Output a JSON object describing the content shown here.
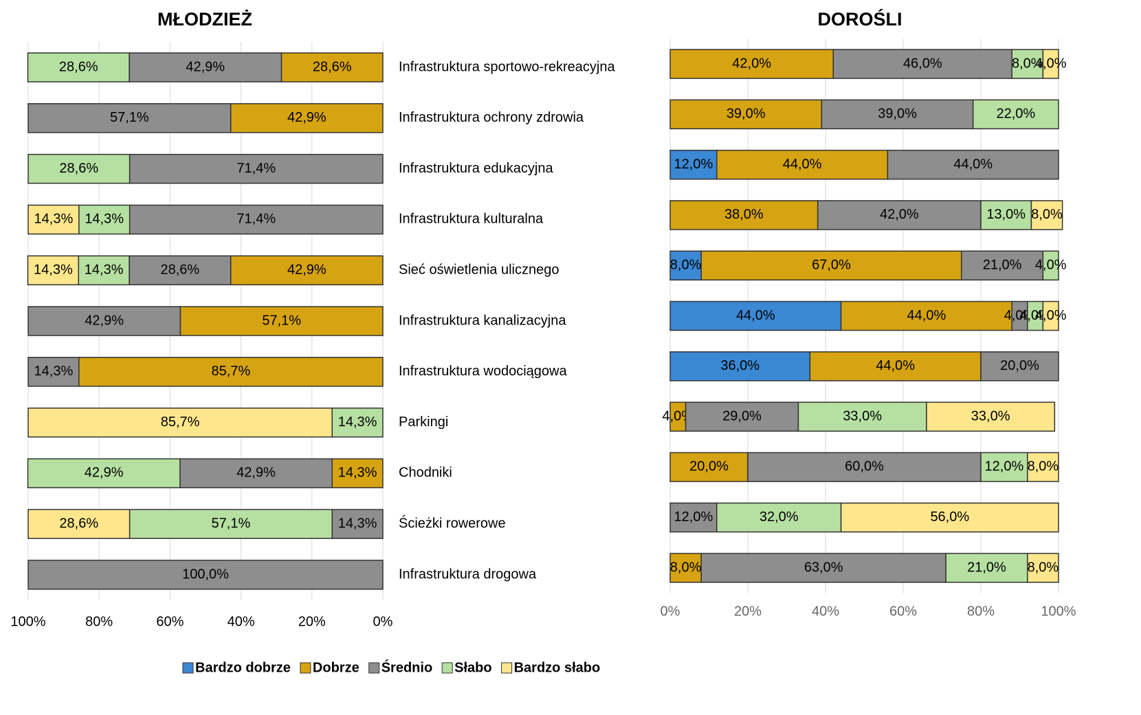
{
  "chart_data": [
    {
      "type": "bar",
      "orientation": "horizontal",
      "stacked": true,
      "x_inverted": true,
      "title": "MŁODZIEŻ",
      "categories": [
        "Infrastruktura sportowo-rekreacyjna",
        "Infrastruktura ochrony zdrowia",
        "Infrastruktura edukacyjna",
        "Infrastruktura kulturalna",
        "Sieć oświetlenia ulicznego",
        "Infrastruktura kanalizacyjna",
        "Infrastruktura wodociągowa",
        "Parkingi",
        "Chodniki",
        "Ścieżki rowerowe",
        "Infrastruktura drogowa"
      ],
      "series": [
        {
          "name": "Bardzo dobrze",
          "color": "#3b88d4",
          "values": [
            null,
            null,
            null,
            null,
            null,
            null,
            null,
            null,
            null,
            null,
            null
          ],
          "value_labels": [
            null,
            null,
            null,
            null,
            null,
            null,
            null,
            null,
            null,
            null,
            null
          ]
        },
        {
          "name": "Dobrze",
          "color": "#d6a312",
          "values": [
            28.6,
            42.9,
            null,
            null,
            42.9,
            57.1,
            85.7,
            null,
            14.3,
            null,
            null
          ],
          "value_labels": [
            "28,6%",
            "42,9%",
            null,
            null,
            "42,9%",
            "57,1%",
            "85,7%",
            null,
            "14,3%",
            null,
            null
          ]
        },
        {
          "name": "Średnio",
          "color": "#8e8e8e",
          "values": [
            42.9,
            57.1,
            71.4,
            71.4,
            28.6,
            42.9,
            14.3,
            null,
            42.9,
            14.3,
            100
          ],
          "value_labels": [
            "42,9%",
            "57,1%",
            "71,4%",
            "71,4%",
            "28,6%",
            "42,9%",
            "14,3%",
            null,
            "42,9%",
            "14,3%",
            "100,0%"
          ]
        },
        {
          "name": "Słabo",
          "color": "#b6e0a2",
          "values": [
            28.6,
            null,
            28.6,
            14.3,
            14.3,
            null,
            null,
            14.3,
            42.9,
            57.1,
            null
          ],
          "value_labels": [
            "28,6%",
            null,
            "28,6%",
            "14,3%",
            "14,3%",
            null,
            null,
            "14,3%",
            "42,9%",
            "57,1%",
            null
          ]
        },
        {
          "name": "Bardzo słabo",
          "color": "#fde68c",
          "values": [
            null,
            null,
            null,
            14.3,
            14.3,
            null,
            null,
            85.7,
            null,
            28.6,
            null
          ],
          "value_labels": [
            null,
            null,
            null,
            "14,3%",
            "14,3%",
            null,
            null,
            "85,7%",
            null,
            "28,6%",
            null
          ]
        }
      ],
      "xlim": [
        0,
        100
      ],
      "xticks": [
        {
          "value": 0,
          "label": "0%"
        },
        {
          "value": 20,
          "label": "20%"
        },
        {
          "value": 40,
          "label": "40%"
        },
        {
          "value": 60,
          "label": "60%"
        },
        {
          "value": 80,
          "label": "80%"
        },
        {
          "value": 100,
          "label": "100%"
        }
      ],
      "grid": true,
      "legend": "bottom"
    },
    {
      "type": "bar",
      "orientation": "horizontal",
      "stacked": true,
      "x_inverted": false,
      "title": "DOROŚLI",
      "series": [
        {
          "color": "#3b88d4",
          "values": [
            null,
            null,
            12,
            null,
            8,
            44,
            36,
            null,
            null,
            null,
            null
          ],
          "value_labels": [
            null,
            null,
            "12,0%",
            null,
            "8,0%",
            "44,0%",
            "36,0%",
            null,
            null,
            null,
            null
          ]
        },
        {
          "color": "#d6a312",
          "values": [
            42,
            39,
            44,
            38,
            67,
            44,
            44,
            4,
            20,
            null,
            8
          ],
          "value_labels": [
            "42,0%",
            "39,0%",
            "44,0%",
            "38,0%",
            "67,0%",
            "44,0%",
            "44,0%",
            "4,0%",
            "20,0%",
            null,
            "8,0%"
          ]
        },
        {
          "color": "#8e8e8e",
          "values": [
            46,
            39,
            44,
            42,
            21,
            4,
            20,
            29,
            60,
            12,
            63
          ],
          "value_labels": [
            "46,0%",
            "39,0%",
            "44,0%",
            "42,0%",
            "21,0%",
            "4,0%",
            "20,0%",
            "29,0%",
            "60,0%",
            "12,0%",
            "63,0%"
          ]
        },
        {
          "color": "#b6e0a2",
          "values": [
            8,
            22,
            null,
            13,
            4,
            4,
            null,
            33,
            12,
            32,
            21
          ],
          "value_labels": [
            "8,0%",
            "22,0%",
            null,
            "13,0%",
            "4,0%",
            "4,0%",
            null,
            "33,0%",
            "12,0%",
            "32,0%",
            "21,0%"
          ]
        },
        {
          "color": "#fde68c",
          "values": [
            4,
            null,
            null,
            8,
            null,
            4,
            null,
            33,
            8,
            56,
            8
          ],
          "value_labels": [
            "4,0%",
            null,
            null,
            "8,0%",
            null,
            "4,0%",
            null,
            "33,0%",
            "8,0%",
            "56,0%",
            "8,0%"
          ]
        }
      ],
      "xlim": [
        0,
        100
      ],
      "xticks": [
        {
          "value": 0,
          "label": "0%"
        },
        {
          "value": 20,
          "label": "20%"
        },
        {
          "value": 40,
          "label": "40%"
        },
        {
          "value": 60,
          "label": "60%"
        },
        {
          "value": 80,
          "label": "80%"
        },
        {
          "value": 100,
          "label": "100%"
        }
      ],
      "grid": true
    }
  ]
}
